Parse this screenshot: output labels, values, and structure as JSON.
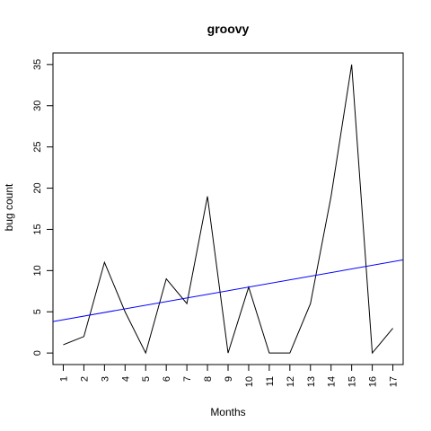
{
  "chart_data": {
    "type": "line",
    "title": "groovy",
    "xlabel": "Months",
    "ylabel": "bug count",
    "x": [
      1,
      2,
      3,
      4,
      5,
      6,
      7,
      8,
      9,
      10,
      11,
      12,
      13,
      14,
      15,
      16,
      17
    ],
    "series": [
      {
        "color": "#000000",
        "values": [
          1,
          2,
          11,
          5,
          0,
          9,
          6,
          19,
          0,
          8,
          0,
          0,
          6,
          19,
          35,
          0,
          3
        ]
      },
      {
        "kind": "trend-line",
        "color": "#0000ff",
        "intercept": 3.6,
        "slope": 0.44
      }
    ],
    "xlim": [
      0.5,
      17.5
    ],
    "ylim": [
      -1.4,
      36.4
    ],
    "xticks": [
      "1",
      "2",
      "3",
      "4",
      "5",
      "6",
      "7",
      "8",
      "9",
      "10",
      "11",
      "12",
      "13",
      "14",
      "15",
      "16",
      "17"
    ],
    "yticks": [
      "0",
      "5",
      "10",
      "15",
      "20",
      "25",
      "30",
      "35"
    ],
    "grid": false,
    "legend": "none"
  }
}
